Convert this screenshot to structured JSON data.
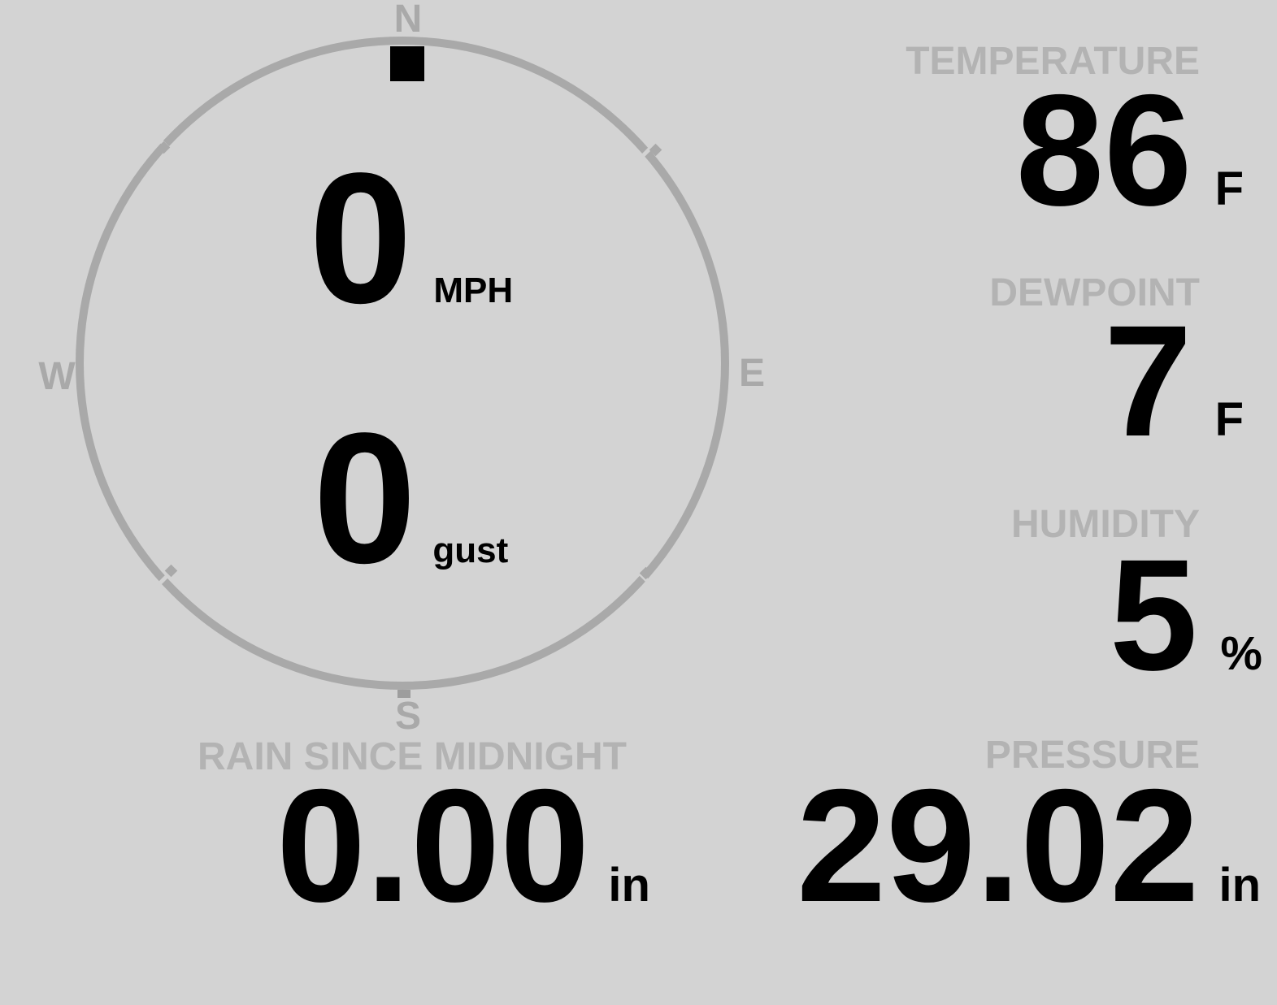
{
  "colors": {
    "background": "#d3d3d3",
    "compass_gray": "#a9a9a9",
    "label_gray": "#b3b3b3",
    "value_black": "#000000"
  },
  "compass": {
    "north_label": "N",
    "east_label": "E",
    "south_label": "S",
    "west_label": "W",
    "wind_direction": "N",
    "speed": {
      "value": "0",
      "unit": "MPH"
    },
    "gust": {
      "value": "0",
      "unit": "gust"
    }
  },
  "metrics": {
    "temperature": {
      "label": "TEMPERATURE",
      "value": "86",
      "unit": "F"
    },
    "dewpoint": {
      "label": "DEWPOINT",
      "value": "7",
      "unit": "F"
    },
    "humidity": {
      "label": "HUMIDITY",
      "value": "5",
      "unit": "%"
    },
    "rain_since_midnight": {
      "label": "RAIN SINCE MIDNIGHT",
      "value": "0.00",
      "unit": "in"
    },
    "pressure": {
      "label": "PRESSURE",
      "value": "29.02",
      "unit": "in"
    }
  }
}
